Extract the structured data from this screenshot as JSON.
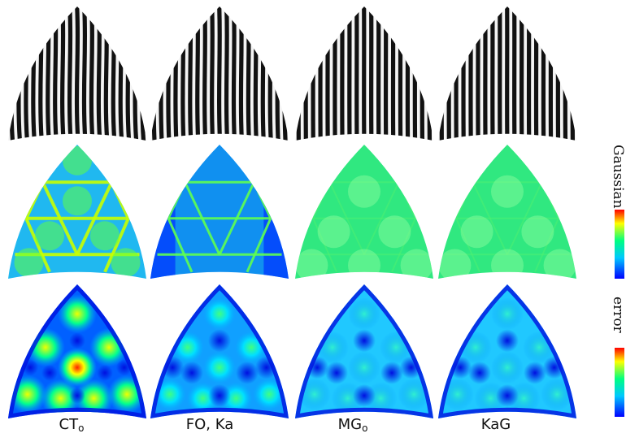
{
  "columns": [
    {
      "id": "ct",
      "label_main": "CT",
      "label_sub": "o"
    },
    {
      "id": "fo-ka",
      "label_main": "FO, Ka",
      "label_sub": ""
    },
    {
      "id": "mg",
      "label_main": "MG",
      "label_sub": "o"
    },
    {
      "id": "kag",
      "label_main": "KaG",
      "label_sub": ""
    }
  ],
  "rows": [
    {
      "id": "stripes",
      "colorbar_label": ""
    },
    {
      "id": "gaussian",
      "colorbar_label": "Gaussian"
    },
    {
      "id": "error",
      "colorbar_label": "error"
    }
  ],
  "colormap": [
    "#0000ff",
    "#00c8ff",
    "#00ff80",
    "#ffff00",
    "#ff0000"
  ]
}
